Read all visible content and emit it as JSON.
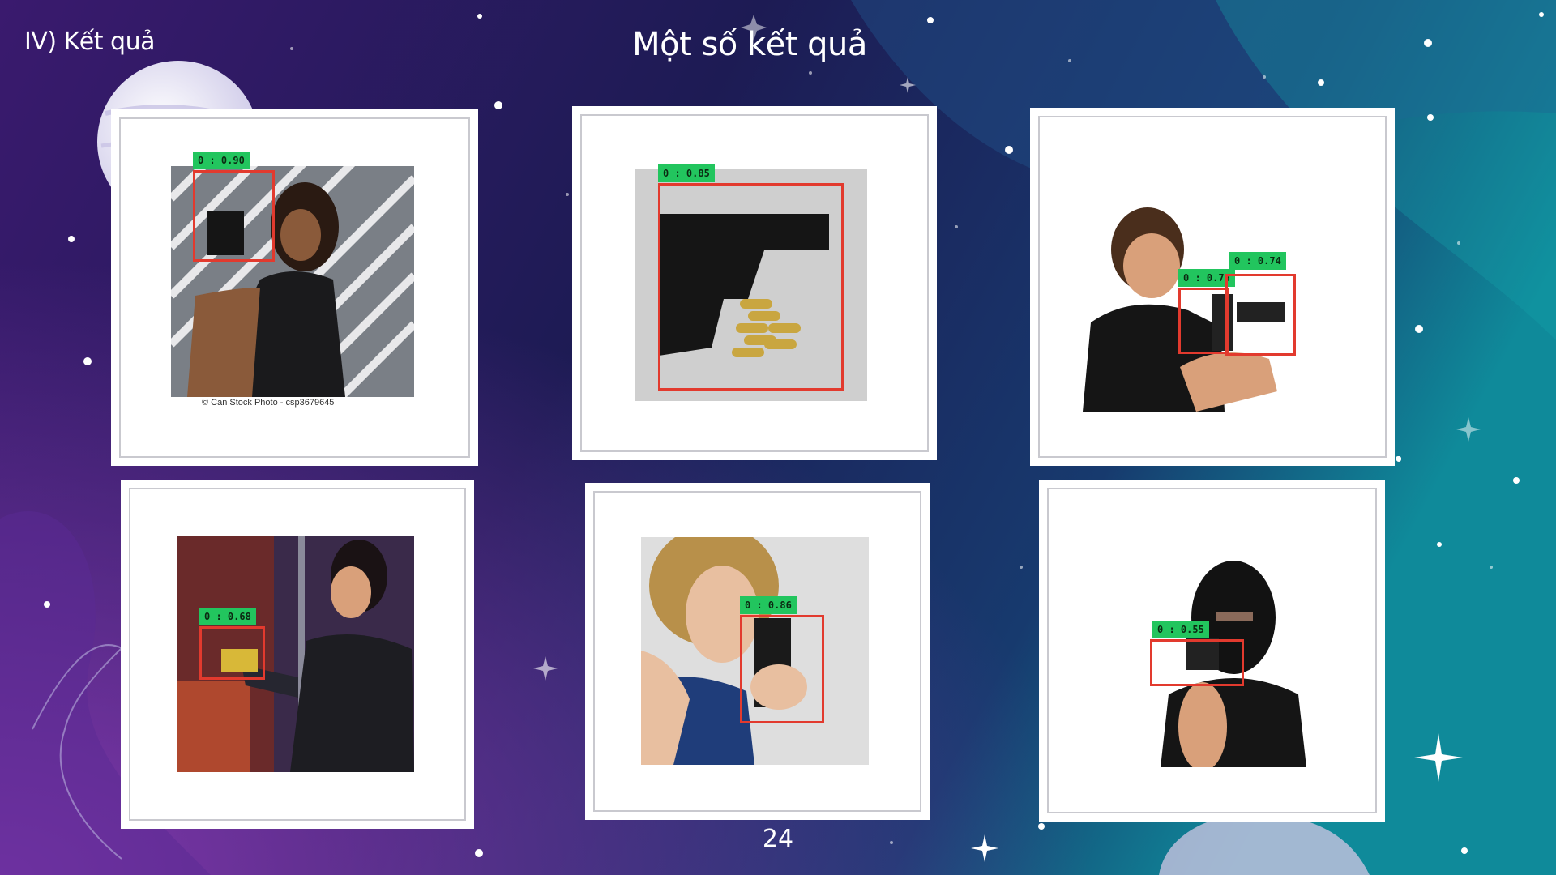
{
  "slide": {
    "section_label": "IV) Kết quả",
    "title": "Một số kết quả",
    "page_number": "24"
  },
  "results": [
    {
      "detections": [
        {
          "label": "0 : 0.90"
        }
      ],
      "caption": "© Can Stock Photo - csp3679645"
    },
    {
      "detections": [
        {
          "label": "0 : 0.85"
        }
      ]
    },
    {
      "detections": [
        {
          "label": "0 : 0.75"
        },
        {
          "label": "0 : 0.74"
        }
      ]
    },
    {
      "detections": [
        {
          "label": "0 : 0.68"
        }
      ]
    },
    {
      "detections": [
        {
          "label": "0 : 0.86"
        }
      ]
    },
    {
      "detections": [
        {
          "label": "0 : 0.55"
        }
      ]
    }
  ],
  "colors": {
    "background_left": "#3a1a6e",
    "background_mid": "#1d1b54",
    "background_right": "#0f8a9a",
    "detection_box": "#e23a2e",
    "detection_label_bg": "#22c55e"
  }
}
